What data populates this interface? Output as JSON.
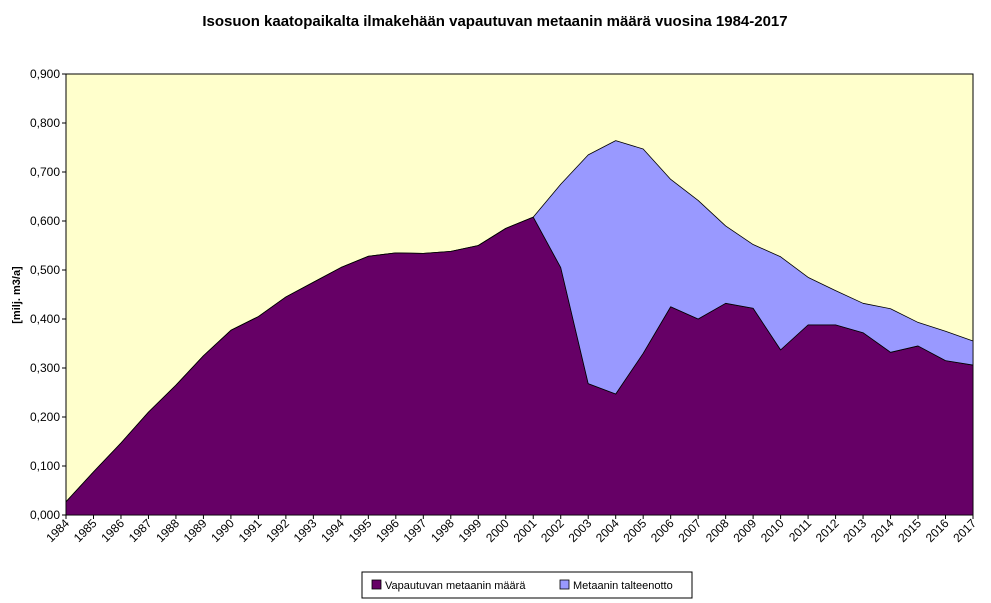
{
  "chart_data": {
    "type": "area",
    "stacked": true,
    "title": "Isosuon kaatopaikalta ilmakehään vapautuvan metaanin määrä vuosina 1984-2017",
    "xlabel": "",
    "ylabel": "[milj. m3/a]",
    "ylim": [
      0,
      0.9
    ],
    "yticks": [
      "0,000",
      "0,100",
      "0,200",
      "0,300",
      "0,400",
      "0,500",
      "0,600",
      "0,700",
      "0,800",
      "0,900"
    ],
    "categories": [
      "1984",
      "1985",
      "1986",
      "1987",
      "1988",
      "1989",
      "1990",
      "1991",
      "1992",
      "1993",
      "1994",
      "1995",
      "1996",
      "1997",
      "1998",
      "1999",
      "2000",
      "2001",
      "2002",
      "2003",
      "2004",
      "2005",
      "2006",
      "2007",
      "2008",
      "2009",
      "2010",
      "2011",
      "2012",
      "2013",
      "2014",
      "2015",
      "2016",
      "2017"
    ],
    "series": [
      {
        "name": "Vapautuvan metaanin määrä",
        "color": "#660066",
        "values": [
          0.027,
          0.088,
          0.147,
          0.21,
          0.265,
          0.325,
          0.377,
          0.405,
          0.445,
          0.475,
          0.505,
          0.528,
          0.535,
          0.534,
          0.538,
          0.55,
          0.585,
          0.608,
          0.505,
          0.268,
          0.247,
          0.33,
          0.425,
          0.4,
          0.432,
          0.422,
          0.337,
          0.388,
          0.388,
          0.372,
          0.332,
          0.345,
          0.315,
          0.306
        ]
      },
      {
        "name": "Metaanin talteenotto",
        "color": "#9999ff",
        "values": [
          0,
          0,
          0,
          0,
          0,
          0,
          0,
          0,
          0,
          0,
          0,
          0,
          0,
          0,
          0,
          0,
          0,
          0,
          0.17,
          0.467,
          0.517,
          0.417,
          0.26,
          0.242,
          0.158,
          0.13,
          0.19,
          0.097,
          0.07,
          0.06,
          0.089,
          0.048,
          0.06,
          0.049
        ]
      }
    ],
    "plot_background": "#ffffcc",
    "grid": false,
    "legend": "bottom-center"
  }
}
